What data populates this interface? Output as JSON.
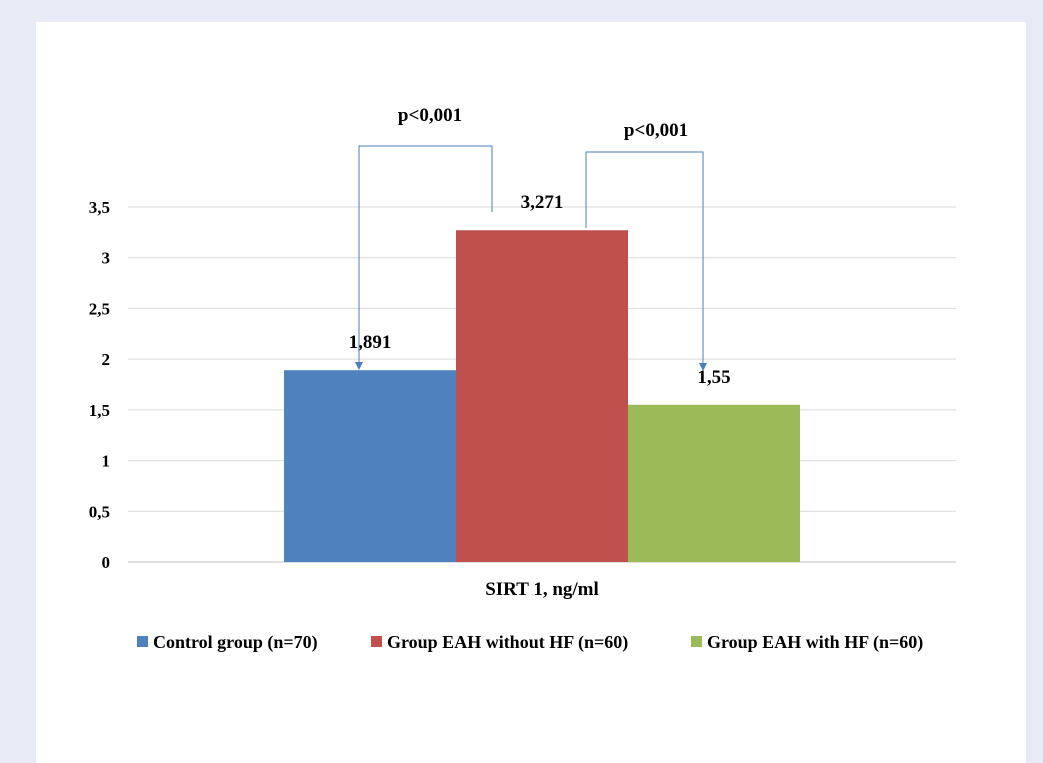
{
  "chart_data": {
    "type": "bar",
    "title": "",
    "xlabel": "SIRT 1, ng/ml",
    "ylabel": "",
    "ylim": [
      0,
      3.5
    ],
    "yticks": [
      0,
      0.5,
      1,
      1.5,
      2,
      2.5,
      3,
      3.5
    ],
    "ytick_labels": [
      "0",
      "0,5",
      "1",
      "1,5",
      "2",
      "2,5",
      "3",
      "3,5"
    ],
    "categories": [
      "SIRT 1, ng/ml"
    ],
    "grid": true,
    "legend_position": "bottom",
    "series": [
      {
        "name": "Control group (n=70)",
        "values": [
          1.891
        ],
        "label": "1,891",
        "color": "#4f81bd"
      },
      {
        "name": "Group EAH without HF (n=60)",
        "values": [
          3.271
        ],
        "label": "3,271",
        "color": "#c0504d"
      },
      {
        "name": "Group EAH with HF (n=60)",
        "values": [
          1.55
        ],
        "label": "1,55",
        "color": "#9bbb59"
      }
    ],
    "annotations": [
      {
        "text": "p<0,001",
        "from_series": 1,
        "to_series": 0
      },
      {
        "text": "p<0,001",
        "from_series": 1,
        "to_series": 2
      }
    ],
    "grid_color": "#d9d9d9",
    "annotation_color": "#4a7ebb"
  }
}
